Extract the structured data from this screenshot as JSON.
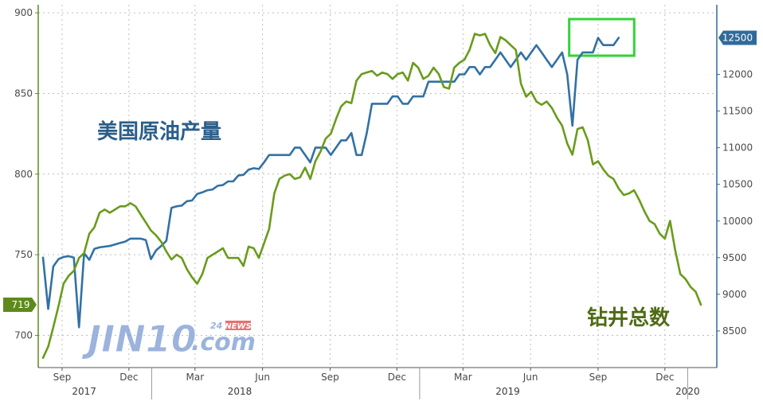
{
  "chart_data": {
    "type": "line",
    "annotations": {
      "production_label": "美国原油产量",
      "rig_label": "钻井总数"
    },
    "x_ticks": [
      {
        "label": "Sep",
        "x": "2017-09"
      },
      {
        "label": "Dec",
        "x": "2017-12"
      },
      {
        "label": "Mar",
        "x": "2018-03"
      },
      {
        "label": "Jun",
        "x": "2018-06"
      },
      {
        "label": "Sep",
        "x": "2018-09"
      },
      {
        "label": "Dec",
        "x": "2018-12"
      },
      {
        "label": "Mar",
        "x": "2019-03"
      },
      {
        "label": "Jun",
        "x": "2019-06"
      },
      {
        "label": "Sep",
        "x": "2019-09"
      },
      {
        "label": "Dec",
        "x": "2019-12"
      }
    ],
    "year_labels": [
      {
        "label": "2017",
        "x": "2017-10"
      },
      {
        "label": "2018",
        "x": "2018-05"
      },
      {
        "label": "2019",
        "x": "2019-05"
      },
      {
        "label": "2020",
        "x": "2020-01"
      }
    ],
    "left_axis": {
      "ticks": [
        700,
        750,
        800,
        850,
        900
      ],
      "range": [
        680,
        905
      ],
      "current_label": "719",
      "current_value": 719,
      "color": "#5e8a1c"
    },
    "right_axis": {
      "ticks": [
        8500,
        9000,
        9500,
        10000,
        10500,
        11000,
        11500,
        12000
      ],
      "range": [
        8000,
        12950
      ],
      "current_label": "12500",
      "current_value": 12500,
      "color": "#2f6b9a"
    },
    "x_range": [
      "2017-08-06",
      "2020-01-19"
    ],
    "grid": true,
    "highlight": {
      "x_range": [
        "2019-07-28",
        "2019-09-22"
      ],
      "color": "#32d23a"
    },
    "series": [
      {
        "axis": "right",
        "color": "#3271a4",
        "points": [
          [
            "2017-08-06",
            9500
          ],
          [
            "2017-08-13",
            8800
          ],
          [
            "2017-08-20",
            9380
          ],
          [
            "2017-08-27",
            9480
          ],
          [
            "2017-09-03",
            9510
          ],
          [
            "2017-09-10",
            9520
          ],
          [
            "2017-09-17",
            9500
          ],
          [
            "2017-09-24",
            8550
          ],
          [
            "2017-10-01",
            9560
          ],
          [
            "2017-10-08",
            9470
          ],
          [
            "2017-10-15",
            9620
          ],
          [
            "2017-10-22",
            9640
          ],
          [
            "2017-10-29",
            9650
          ],
          [
            "2017-11-05",
            9660
          ],
          [
            "2017-11-12",
            9680
          ],
          [
            "2017-11-19",
            9700
          ],
          [
            "2017-11-26",
            9720
          ],
          [
            "2017-12-03",
            9760
          ],
          [
            "2017-12-10",
            9760
          ],
          [
            "2017-12-17",
            9760
          ],
          [
            "2017-12-24",
            9740
          ],
          [
            "2017-12-31",
            9480
          ],
          [
            "2018-01-07",
            9600
          ],
          [
            "2018-01-14",
            9660
          ],
          [
            "2018-01-21",
            9730
          ],
          [
            "2018-01-28",
            10180
          ],
          [
            "2018-02-04",
            10200
          ],
          [
            "2018-02-11",
            10210
          ],
          [
            "2018-02-18",
            10270
          ],
          [
            "2018-02-25",
            10280
          ],
          [
            "2018-03-04",
            10370
          ],
          [
            "2018-03-11",
            10390
          ],
          [
            "2018-03-18",
            10420
          ],
          [
            "2018-03-25",
            10430
          ],
          [
            "2018-04-01",
            10480
          ],
          [
            "2018-04-08",
            10490
          ],
          [
            "2018-04-15",
            10540
          ],
          [
            "2018-04-22",
            10540
          ],
          [
            "2018-04-29",
            10620
          ],
          [
            "2018-05-06",
            10630
          ],
          [
            "2018-05-13",
            10700
          ],
          [
            "2018-05-20",
            10720
          ],
          [
            "2018-05-27",
            10710
          ],
          [
            "2018-06-03",
            10800
          ],
          [
            "2018-06-10",
            10900
          ],
          [
            "2018-06-17",
            10900
          ],
          [
            "2018-06-24",
            10900
          ],
          [
            "2018-07-01",
            10900
          ],
          [
            "2018-07-08",
            10900
          ],
          [
            "2018-07-15",
            11000
          ],
          [
            "2018-07-22",
            11000
          ],
          [
            "2018-07-29",
            10900
          ],
          [
            "2018-08-05",
            10800
          ],
          [
            "2018-08-12",
            11000
          ],
          [
            "2018-08-19",
            11000
          ],
          [
            "2018-08-26",
            11000
          ],
          [
            "2018-09-02",
            10900
          ],
          [
            "2018-09-09",
            11000
          ],
          [
            "2018-09-16",
            11100
          ],
          [
            "2018-09-23",
            11100
          ],
          [
            "2018-09-30",
            11200
          ],
          [
            "2018-10-07",
            10900
          ],
          [
            "2018-10-14",
            10900
          ],
          [
            "2018-10-21",
            11200
          ],
          [
            "2018-10-28",
            11600
          ],
          [
            "2018-11-04",
            11600
          ],
          [
            "2018-11-11",
            11600
          ],
          [
            "2018-11-18",
            11600
          ],
          [
            "2018-11-25",
            11700
          ],
          [
            "2018-12-02",
            11700
          ],
          [
            "2018-12-09",
            11600
          ],
          [
            "2018-12-16",
            11600
          ],
          [
            "2018-12-23",
            11700
          ],
          [
            "2018-12-30",
            11700
          ],
          [
            "2019-01-06",
            11700
          ],
          [
            "2019-01-13",
            11900
          ],
          [
            "2019-01-20",
            11900
          ],
          [
            "2019-01-27",
            11900
          ],
          [
            "2019-02-03",
            11900
          ],
          [
            "2019-02-10",
            11900
          ],
          [
            "2019-02-17",
            11900
          ],
          [
            "2019-02-24",
            12000
          ],
          [
            "2019-03-03",
            12000
          ],
          [
            "2019-03-10",
            12100
          ],
          [
            "2019-03-17",
            12100
          ],
          [
            "2019-03-24",
            12000
          ],
          [
            "2019-03-31",
            12100
          ],
          [
            "2019-04-07",
            12100
          ],
          [
            "2019-04-14",
            12200
          ],
          [
            "2019-04-21",
            12300
          ],
          [
            "2019-04-28",
            12200
          ],
          [
            "2019-05-05",
            12100
          ],
          [
            "2019-05-12",
            12200
          ],
          [
            "2019-05-19",
            12300
          ],
          [
            "2019-05-26",
            12200
          ],
          [
            "2019-06-02",
            12300
          ],
          [
            "2019-06-09",
            12400
          ],
          [
            "2019-06-16",
            12300
          ],
          [
            "2019-06-23",
            12200
          ],
          [
            "2019-06-30",
            12100
          ],
          [
            "2019-07-07",
            12200
          ],
          [
            "2019-07-14",
            12300
          ],
          [
            "2019-07-21",
            12000
          ],
          [
            "2019-07-28",
            11300
          ],
          [
            "2019-08-04",
            12200
          ],
          [
            "2019-08-11",
            12300
          ],
          [
            "2019-08-18",
            12300
          ],
          [
            "2019-08-25",
            12300
          ],
          [
            "2019-09-01",
            12500
          ],
          [
            "2019-09-08",
            12400
          ],
          [
            "2019-09-15",
            12400
          ],
          [
            "2019-09-22",
            12400
          ],
          [
            "2019-09-29",
            12500
          ]
        ]
      },
      {
        "axis": "left",
        "color": "#6a9b1c",
        "points": [
          [
            "2017-08-06",
            686
          ],
          [
            "2017-08-13",
            693
          ],
          [
            "2017-08-20",
            705
          ],
          [
            "2017-08-27",
            718
          ],
          [
            "2017-09-03",
            732
          ],
          [
            "2017-09-10",
            737
          ],
          [
            "2017-09-17",
            740
          ],
          [
            "2017-09-24",
            748
          ],
          [
            "2017-10-01",
            751
          ],
          [
            "2017-10-08",
            763
          ],
          [
            "2017-10-15",
            767
          ],
          [
            "2017-10-22",
            776
          ],
          [
            "2017-10-29",
            778
          ],
          [
            "2017-11-05",
            776
          ],
          [
            "2017-11-12",
            778
          ],
          [
            "2017-11-19",
            780
          ],
          [
            "2017-11-26",
            780
          ],
          [
            "2017-12-03",
            782
          ],
          [
            "2017-12-10",
            780
          ],
          [
            "2017-12-17",
            775
          ],
          [
            "2017-12-24",
            770
          ],
          [
            "2017-12-31",
            765
          ],
          [
            "2018-01-07",
            762
          ],
          [
            "2018-01-14",
            758
          ],
          [
            "2018-01-21",
            752
          ],
          [
            "2018-01-28",
            747
          ],
          [
            "2018-02-04",
            750
          ],
          [
            "2018-02-11",
            748
          ],
          [
            "2018-02-18",
            741
          ],
          [
            "2018-02-25",
            736
          ],
          [
            "2018-03-04",
            732
          ],
          [
            "2018-03-11",
            738
          ],
          [
            "2018-03-18",
            748
          ],
          [
            "2018-03-25",
            750
          ],
          [
            "2018-04-01",
            752
          ],
          [
            "2018-04-08",
            754
          ],
          [
            "2018-04-15",
            748
          ],
          [
            "2018-04-22",
            748
          ],
          [
            "2018-04-29",
            748
          ],
          [
            "2018-05-06",
            743
          ],
          [
            "2018-05-13",
            755
          ],
          [
            "2018-05-20",
            754
          ],
          [
            "2018-05-27",
            748
          ],
          [
            "2018-06-03",
            757
          ],
          [
            "2018-06-10",
            766
          ],
          [
            "2018-06-17",
            788
          ],
          [
            "2018-06-24",
            797
          ],
          [
            "2018-07-01",
            799
          ],
          [
            "2018-07-08",
            800
          ],
          [
            "2018-07-15",
            797
          ],
          [
            "2018-07-22",
            798
          ],
          [
            "2018-07-29",
            804
          ],
          [
            "2018-08-05",
            797
          ],
          [
            "2018-08-12",
            808
          ],
          [
            "2018-08-19",
            814
          ],
          [
            "2018-08-26",
            822
          ],
          [
            "2018-09-02",
            825
          ],
          [
            "2018-09-09",
            834
          ],
          [
            "2018-09-16",
            842
          ],
          [
            "2018-09-23",
            845
          ],
          [
            "2018-09-30",
            844
          ],
          [
            "2018-10-07",
            858
          ],
          [
            "2018-10-14",
            862
          ],
          [
            "2018-10-21",
            863
          ],
          [
            "2018-10-28",
            864
          ],
          [
            "2018-11-04",
            861
          ],
          [
            "2018-11-11",
            863
          ],
          [
            "2018-11-18",
            862
          ],
          [
            "2018-11-25",
            859
          ],
          [
            "2018-12-02",
            862
          ],
          [
            "2018-12-09",
            863
          ],
          [
            "2018-12-16",
            858
          ],
          [
            "2018-12-23",
            869
          ],
          [
            "2018-12-30",
            866
          ],
          [
            "2019-01-06",
            859
          ],
          [
            "2019-01-13",
            861
          ],
          [
            "2019-01-20",
            866
          ],
          [
            "2019-01-27",
            862
          ],
          [
            "2019-02-03",
            854
          ],
          [
            "2019-02-10",
            853
          ],
          [
            "2019-02-17",
            866
          ],
          [
            "2019-02-24",
            869
          ],
          [
            "2019-03-03",
            871
          ],
          [
            "2019-03-10",
            877
          ],
          [
            "2019-03-17",
            887
          ],
          [
            "2019-03-24",
            886
          ],
          [
            "2019-03-31",
            887
          ],
          [
            "2019-04-07",
            880
          ],
          [
            "2019-04-14",
            875
          ],
          [
            "2019-04-21",
            885
          ],
          [
            "2019-04-28",
            883
          ],
          [
            "2019-05-05",
            880
          ],
          [
            "2019-05-12",
            877
          ],
          [
            "2019-05-19",
            856
          ],
          [
            "2019-05-26",
            848
          ],
          [
            "2019-06-02",
            851
          ],
          [
            "2019-06-09",
            845
          ],
          [
            "2019-06-16",
            843
          ],
          [
            "2019-06-23",
            845
          ],
          [
            "2019-06-30",
            841
          ],
          [
            "2019-07-07",
            835
          ],
          [
            "2019-07-14",
            830
          ],
          [
            "2019-07-21",
            819
          ],
          [
            "2019-07-28",
            812
          ],
          [
            "2019-08-04",
            828
          ],
          [
            "2019-08-11",
            829
          ],
          [
            "2019-08-18",
            821
          ],
          [
            "2019-08-25",
            806
          ],
          [
            "2019-09-01",
            808
          ],
          [
            "2019-09-08",
            803
          ],
          [
            "2019-09-15",
            799
          ],
          [
            "2019-09-22",
            797
          ],
          [
            "2019-09-29",
            791
          ],
          [
            "2019-10-06",
            787
          ],
          [
            "2019-10-13",
            788
          ],
          [
            "2019-10-20",
            790
          ],
          [
            "2019-10-27",
            784
          ],
          [
            "2019-11-03",
            777
          ],
          [
            "2019-11-10",
            771
          ],
          [
            "2019-11-17",
            769
          ],
          [
            "2019-11-24",
            763
          ],
          [
            "2019-12-01",
            760
          ],
          [
            "2019-12-08",
            771
          ],
          [
            "2019-12-15",
            753
          ],
          [
            "2019-12-22",
            738
          ],
          [
            "2019-12-29",
            735
          ],
          [
            "2020-01-05",
            730
          ],
          [
            "2020-01-12",
            727
          ],
          [
            "2020-01-19",
            719
          ]
        ]
      }
    ]
  },
  "watermark": {
    "brand": "JIN10",
    "domain": ".com",
    "sub_number": "24",
    "sub_text": "NEWS"
  }
}
